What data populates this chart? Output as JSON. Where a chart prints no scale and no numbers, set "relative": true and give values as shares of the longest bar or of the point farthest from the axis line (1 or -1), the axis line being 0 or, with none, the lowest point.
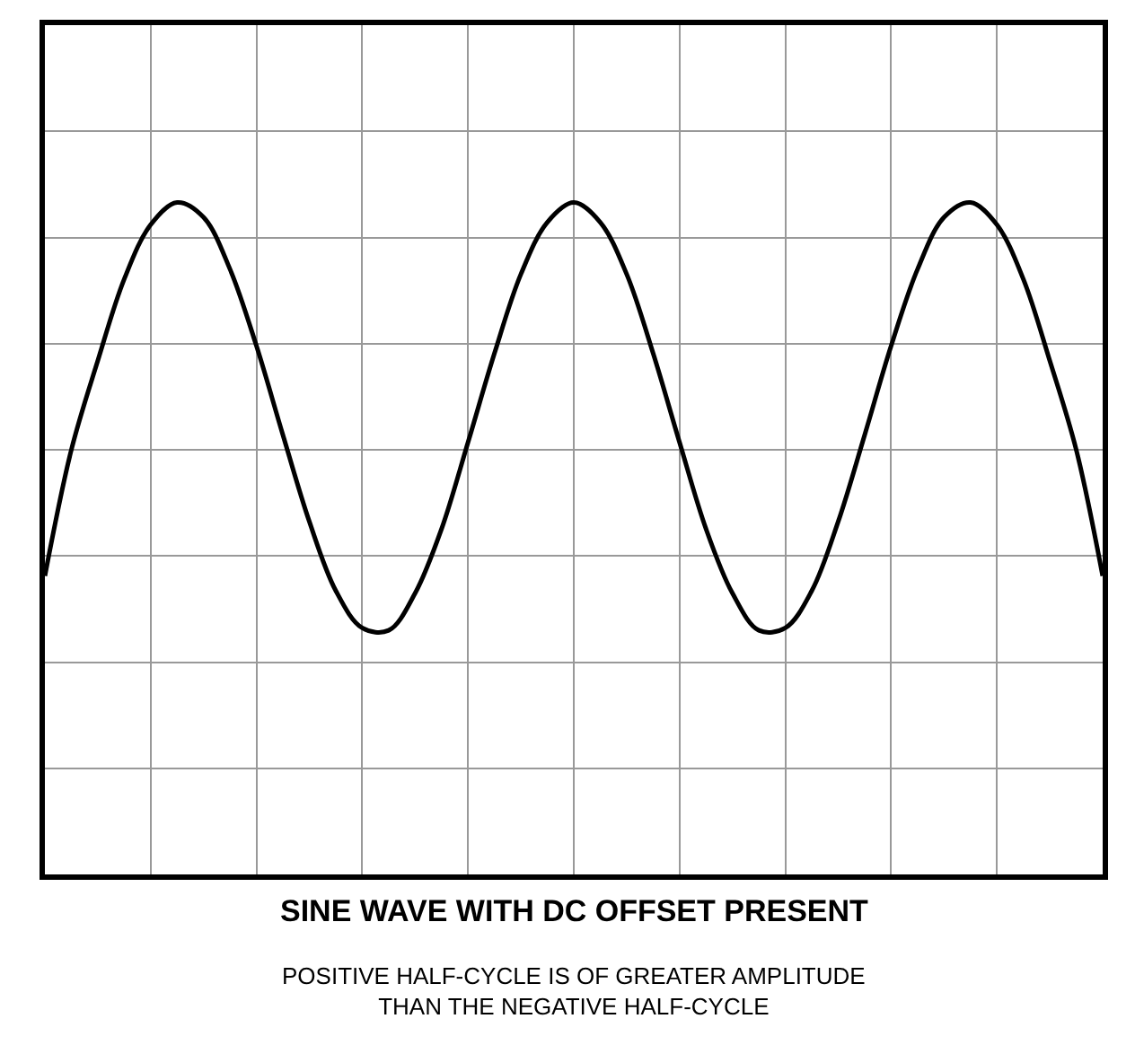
{
  "chart_data": {
    "type": "line",
    "relative": true,
    "title": "SINE WAVE WITH DC OFFSET PRESENT",
    "annotations": [
      "POSITIVE HALF-CYCLE IS OF GREATER AMPLITUDE THAN THE NEGATIVE HALF-CYCLE"
    ],
    "categories": [
      null,
      null,
      null,
      null,
      null,
      null,
      null,
      null,
      null,
      null,
      null,
      null,
      null,
      null,
      null,
      null,
      null,
      null,
      null,
      null,
      null,
      null,
      null,
      null,
      null,
      null,
      null,
      null,
      null,
      null,
      null,
      null,
      null,
      null,
      null,
      null,
      null,
      null,
      null,
      null,
      null
    ],
    "series": [
      {
        "color": "#000000",
        "values": [
          -0.51,
          0.0,
          0.36,
          0.69,
          0.91,
          1.0,
          0.94,
          0.73,
          0.42,
          0.06,
          -0.29,
          -0.57,
          -0.72,
          -0.73,
          -0.58,
          -0.32,
          0.03,
          0.39,
          0.71,
          0.92,
          1.0,
          0.92,
          0.71,
          0.39,
          0.03,
          -0.32,
          -0.58,
          -0.73,
          -0.72,
          -0.57,
          -0.29,
          0.06,
          0.42,
          0.73,
          0.94,
          1.0,
          0.91,
          0.69,
          0.36,
          0.0,
          -0.51
        ]
      }
    ],
    "grid": true,
    "marker": "none",
    "line_style": "solid"
  }
}
